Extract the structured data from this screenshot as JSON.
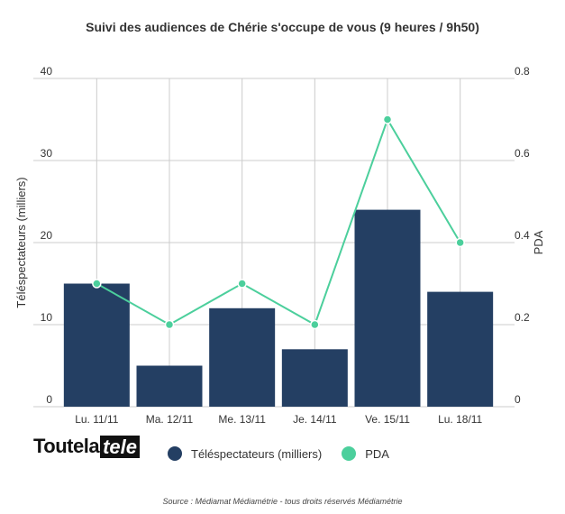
{
  "chart_data": {
    "type": "bar",
    "title": "Suivi des audiences de Chérie s'occupe de vous (9 heures / 9h50)",
    "categories": [
      "Lu. 11/11",
      "Ma. 12/11",
      "Me. 13/11",
      "Je. 14/11",
      "Ve. 15/11",
      "Lu. 18/11"
    ],
    "series": [
      {
        "name": "Téléspectateurs (milliers)",
        "type": "bar",
        "axis": "left",
        "color": "#243f63",
        "values": [
          15,
          5,
          12,
          7,
          24,
          14
        ]
      },
      {
        "name": "PDA",
        "type": "line",
        "axis": "right",
        "color": "#4ccf9c",
        "values": [
          0.3,
          0.2,
          0.3,
          0.2,
          0.7,
          0.4
        ]
      }
    ],
    "ylabel": "Téléspectateurs (milliers)",
    "ylabel_right": "PDA",
    "ylim": [
      0,
      40
    ],
    "ylim_right": [
      0,
      0.8
    ],
    "yticks": [
      "0",
      "10",
      "20",
      "30",
      "40"
    ],
    "yticks_right": [
      "0",
      "0.2",
      "0.4",
      "0.6",
      "0.8"
    ],
    "grid": true,
    "legend_position": "bottom"
  },
  "brand": {
    "logo_main": "Toutela",
    "logo_box": "tele"
  },
  "source": "Source : Médiamat Médiamétrie - tous droits réservés Médiamétrie"
}
